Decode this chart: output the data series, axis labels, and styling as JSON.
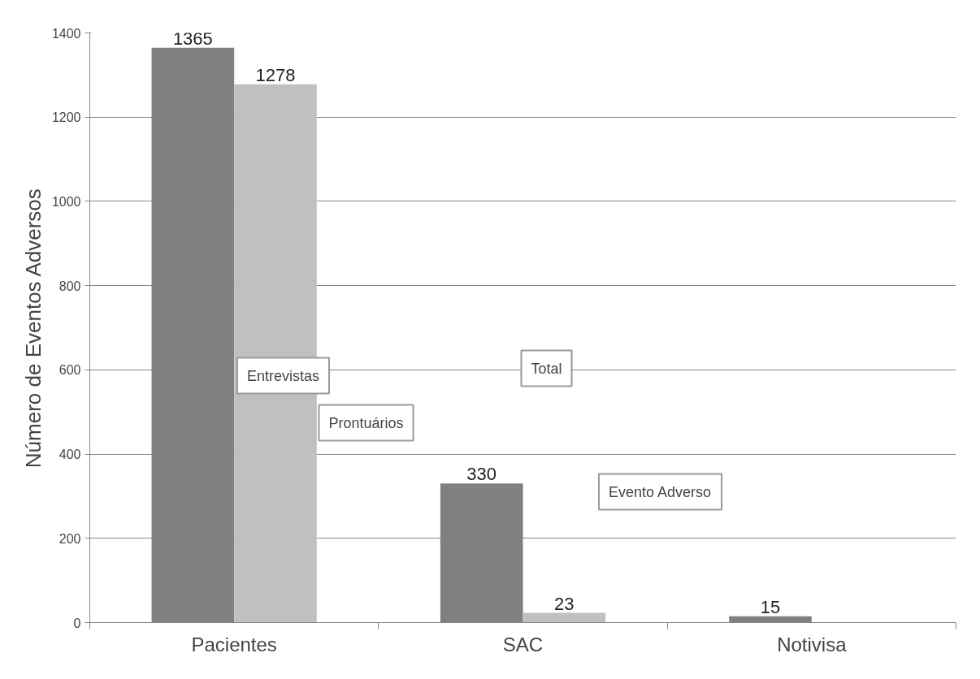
{
  "chart_data": {
    "type": "bar",
    "ylabel": "Número de Eventos Adversos",
    "categories": [
      "Pacientes",
      "SAC",
      "Notivisa"
    ],
    "series": [
      {
        "color": "#808080",
        "values": [
          1365,
          330,
          15
        ]
      },
      {
        "color": "#c0c0c0",
        "values": [
          1278,
          23,
          null
        ]
      }
    ],
    "ylim": [
      0,
      1400
    ],
    "yticks": [
      0,
      200,
      400,
      600,
      800,
      1000,
      1200,
      1400
    ],
    "grid": "y",
    "data_labels": true,
    "annotations": [
      "Entrevistas",
      "Prontuários",
      "Total",
      "Evento Adverso"
    ]
  }
}
